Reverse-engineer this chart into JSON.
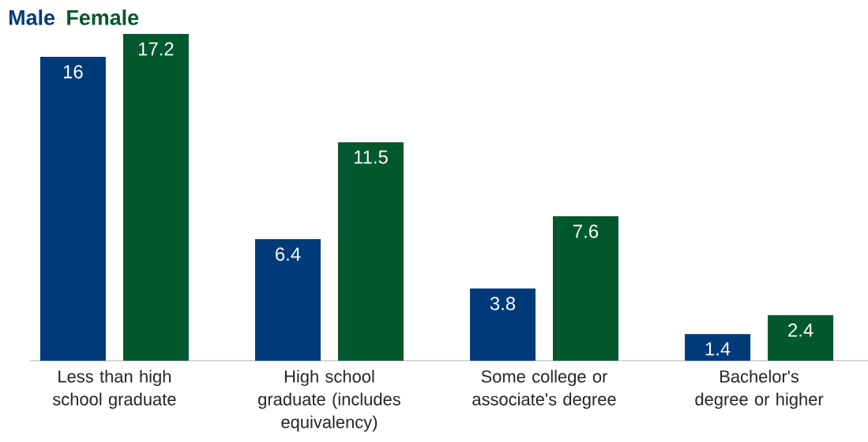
{
  "chart_data": {
    "type": "bar",
    "categories": [
      "Less than high school graduate",
      "High school graduate (includes equivalency)",
      "Some college or associate's degree",
      "Bachelor's degree or higher"
    ],
    "series": [
      {
        "name": "Male",
        "color": "#003a78",
        "values": [
          16,
          6.4,
          3.8,
          1.4
        ]
      },
      {
        "name": "Female",
        "color": "#00582c",
        "values": [
          17.2,
          11.5,
          7.6,
          2.4
        ]
      }
    ],
    "data_labels": true,
    "legend": "top left",
    "tick_labels": "x"
  }
}
